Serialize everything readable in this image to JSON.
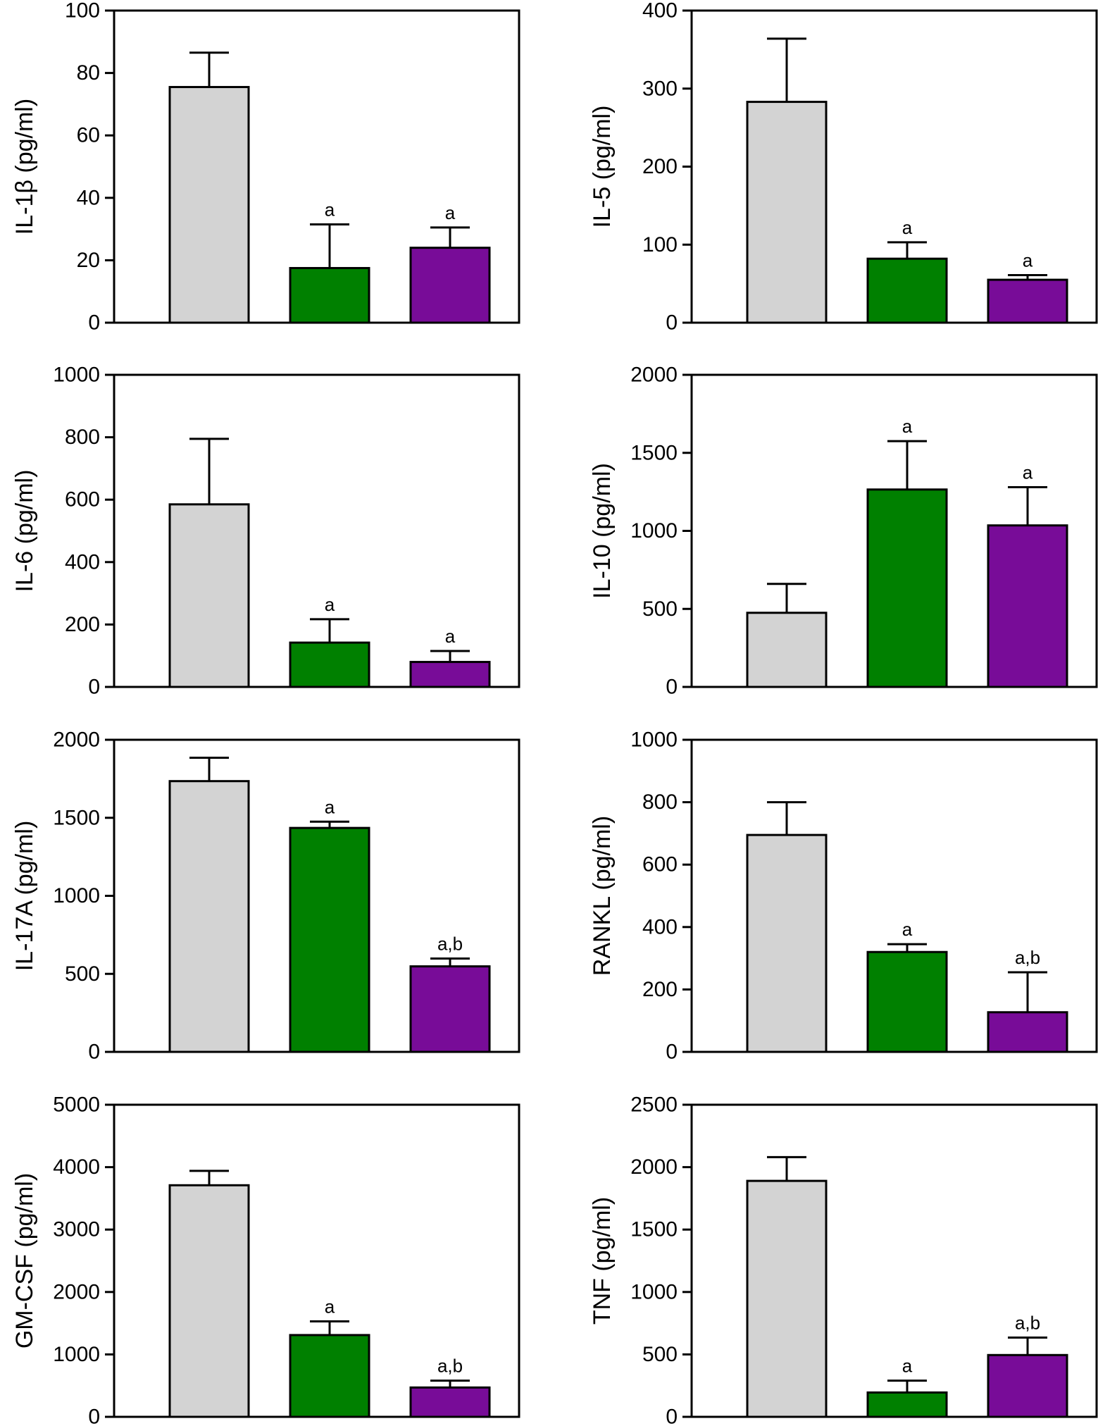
{
  "chart_data": [
    {
      "type": "bar",
      "ylabel": "IL-1β (pg/ml)",
      "ylim": [
        0,
        100
      ],
      "yticks": [
        0,
        20,
        40,
        60,
        80,
        100
      ],
      "colors": [
        "#d3d3d3",
        "#008000",
        "#780c98"
      ],
      "values": [
        75.5,
        17.5,
        24
      ],
      "errors": [
        11,
        14,
        6.5
      ],
      "annotations": [
        "",
        "a",
        "a"
      ]
    },
    {
      "type": "bar",
      "ylabel": "IL-5 (pg/ml)",
      "ylim": [
        0,
        400
      ],
      "yticks": [
        0,
        100,
        200,
        300,
        400
      ],
      "colors": [
        "#d3d3d3",
        "#008000",
        "#780c98"
      ],
      "values": [
        283,
        82,
        55
      ],
      "errors": [
        81,
        21,
        6
      ],
      "annotations": [
        "",
        "a",
        "a"
      ]
    },
    {
      "type": "bar",
      "ylabel": "IL-6 (pg/ml)",
      "ylim": [
        0,
        1000
      ],
      "yticks": [
        0,
        200,
        400,
        600,
        800,
        1000
      ],
      "colors": [
        "#d3d3d3",
        "#008000",
        "#780c98"
      ],
      "values": [
        585,
        142,
        80
      ],
      "errors": [
        210,
        75,
        35
      ],
      "annotations": [
        "",
        "a",
        "a"
      ]
    },
    {
      "type": "bar",
      "ylabel": "IL-10 (pg/ml)",
      "ylim": [
        0,
        2000
      ],
      "yticks": [
        0,
        500,
        1000,
        1500,
        2000
      ],
      "colors": [
        "#d3d3d3",
        "#008000",
        "#780c98"
      ],
      "values": [
        475,
        1265,
        1035
      ],
      "errors": [
        185,
        310,
        245
      ],
      "annotations": [
        "",
        "a",
        "a"
      ]
    },
    {
      "type": "bar",
      "ylabel": "IL-17A (pg/ml)",
      "ylim": [
        0,
        2000
      ],
      "yticks": [
        0,
        500,
        1000,
        1500,
        2000
      ],
      "colors": [
        "#d3d3d3",
        "#008000",
        "#780c98"
      ],
      "values": [
        1735,
        1435,
        548
      ],
      "errors": [
        150,
        40,
        50
      ],
      "annotations": [
        "",
        "a",
        "a,b"
      ]
    },
    {
      "type": "bar",
      "ylabel": "RANKL (pg/ml)",
      "ylim": [
        0,
        1000
      ],
      "yticks": [
        0,
        200,
        400,
        600,
        800,
        1000
      ],
      "colors": [
        "#d3d3d3",
        "#008000",
        "#780c98"
      ],
      "values": [
        695,
        320,
        127
      ],
      "errors": [
        105,
        25,
        128
      ],
      "annotations": [
        "",
        "a",
        "a,b"
      ]
    },
    {
      "type": "bar",
      "ylabel": "GM-CSF (pg/ml)",
      "ylim": [
        0,
        5000
      ],
      "yticks": [
        0,
        1000,
        2000,
        3000,
        4000,
        5000
      ],
      "colors": [
        "#d3d3d3",
        "#008000",
        "#780c98"
      ],
      "values": [
        3710,
        1310,
        470
      ],
      "errors": [
        230,
        220,
        110
      ],
      "annotations": [
        "",
        "a",
        "a,b"
      ]
    },
    {
      "type": "bar",
      "ylabel": "TNF (pg/ml)",
      "ylim": [
        0,
        2500
      ],
      "yticks": [
        0,
        500,
        1000,
        1500,
        2000,
        2500
      ],
      "colors": [
        "#d3d3d3",
        "#008000",
        "#780c98"
      ],
      "values": [
        1890,
        195,
        495
      ],
      "errors": [
        190,
        95,
        140
      ],
      "annotations": [
        "",
        "a",
        "a,b"
      ]
    }
  ]
}
